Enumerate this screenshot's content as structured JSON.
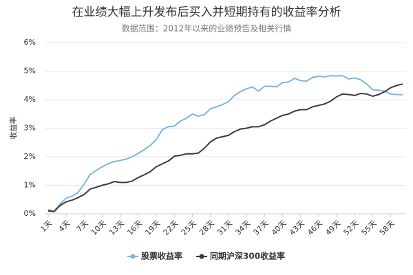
{
  "chart_data": {
    "type": "line",
    "title": "在业绩大幅上升发布后买入并短期持有的收益率分析",
    "subtitle": "数据范围：2012年以来的业绩预告及相关行情",
    "y_label": "收益率",
    "categories": [
      "1天",
      null,
      null,
      "4天",
      null,
      null,
      "7天",
      null,
      null,
      "10天",
      null,
      null,
      "13天",
      null,
      null,
      "16天",
      null,
      null,
      "19天",
      null,
      null,
      "22天",
      null,
      null,
      "25天",
      null,
      null,
      "28天",
      null,
      null,
      "31天",
      null,
      null,
      "34天",
      null,
      null,
      "37天",
      null,
      null,
      "40天",
      null,
      null,
      "43天",
      null,
      null,
      "46天",
      null,
      null,
      "49天",
      null,
      null,
      "52天",
      null,
      null,
      "55天",
      null,
      null,
      "58天",
      null,
      null
    ],
    "series": [
      {
        "name": "股票收益率",
        "color": "#7cb5e0",
        "values": [
          0.15,
          0.1,
          0.35,
          0.55,
          0.62,
          0.75,
          1.05,
          1.38,
          1.52,
          1.65,
          1.76,
          1.83,
          1.87,
          1.92,
          2.0,
          2.12,
          2.25,
          2.4,
          2.6,
          2.95,
          3.05,
          3.07,
          3.25,
          3.35,
          3.5,
          3.42,
          3.48,
          3.68,
          3.75,
          3.83,
          3.93,
          4.15,
          4.28,
          4.38,
          4.45,
          4.3,
          4.47,
          4.47,
          4.45,
          4.6,
          4.62,
          4.75,
          4.67,
          4.65,
          4.78,
          4.82,
          4.8,
          4.84,
          4.83,
          4.84,
          4.73,
          4.76,
          4.7,
          4.55,
          4.35,
          4.33,
          4.3,
          4.2,
          4.18,
          4.17
        ]
      },
      {
        "name": "同期沪深300收益率",
        "color": "#3a3a3a",
        "values": [
          0.1,
          0.08,
          0.3,
          0.42,
          0.48,
          0.57,
          0.68,
          0.87,
          0.93,
          1.0,
          1.05,
          1.13,
          1.1,
          1.1,
          1.15,
          1.27,
          1.37,
          1.48,
          1.65,
          1.75,
          1.85,
          2.02,
          2.05,
          2.1,
          2.1,
          2.13,
          2.3,
          2.52,
          2.65,
          2.7,
          2.75,
          2.88,
          2.97,
          3.0,
          3.05,
          3.05,
          3.12,
          3.25,
          3.35,
          3.45,
          3.5,
          3.6,
          3.65,
          3.65,
          3.75,
          3.8,
          3.85,
          3.95,
          4.1,
          4.2,
          4.18,
          4.15,
          4.22,
          4.2,
          4.12,
          4.18,
          4.28,
          4.42,
          4.5,
          4.55
        ]
      }
    ],
    "ylim": [
      0,
      6
    ],
    "yticks": [
      {
        "value": 0,
        "label": "0%"
      },
      {
        "value": 1,
        "label": "1%"
      },
      {
        "value": 2,
        "label": "2%"
      },
      {
        "value": 3,
        "label": "3%"
      },
      {
        "value": 4,
        "label": "4%"
      },
      {
        "value": 5,
        "label": "5%"
      },
      {
        "value": 6,
        "label": "6%"
      }
    ],
    "grid": true,
    "legend": "bottom"
  }
}
